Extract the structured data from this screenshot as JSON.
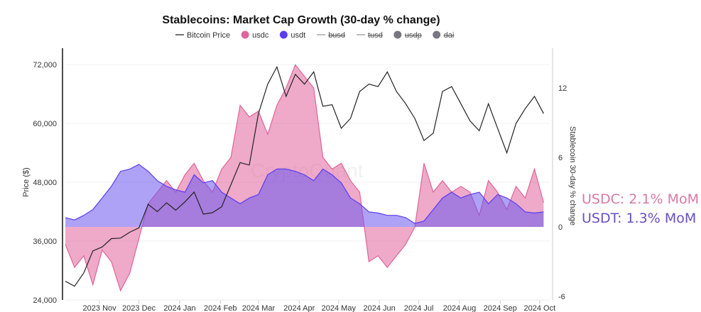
{
  "chart_data": {
    "type": "line+area",
    "title": "Stablecoins: Market Cap Growth (30-day % change)",
    "ylabel_left": "Price ($)",
    "ylabel_right": "Stablecoin 30-day % change",
    "ylim_left": [
      24000,
      78000
    ],
    "ylim_right": [
      -6,
      15
    ],
    "left_ticks": [
      "24,000",
      "36,000",
      "48,000",
      "60,000",
      "72,000"
    ],
    "left_tick_values": [
      24000,
      36000,
      48000,
      60000,
      72000
    ],
    "right_ticks": [
      "-6",
      "0",
      "6",
      "12"
    ],
    "right_tick_values": [
      -6,
      0,
      6,
      12
    ],
    "x_ticks": [
      "2023 Nov",
      "2023 Dec",
      "2024 Jan",
      "2024 Feb",
      "2024 Mar",
      "2024 Apr",
      "2024 May",
      "2024 Jun",
      "2024 Jul",
      "2024 Aug",
      "2024 Sep",
      "2024 Oct"
    ],
    "x_tick_dates": [
      "2023-11-01",
      "2023-12-01",
      "2024-01-01",
      "2024-02-01",
      "2024-03-01",
      "2024-04-01",
      "2024-05-01",
      "2024-06-01",
      "2024-07-01",
      "2024-08-01",
      "2024-09-01",
      "2024-10-01"
    ],
    "grid": true,
    "legend_position": "top",
    "legend": [
      {
        "label": "Bitcoin Price",
        "marker": "line",
        "color": "#222222",
        "hidden": false
      },
      {
        "label": "usdc",
        "marker": "dot",
        "color": "#e0649b",
        "hidden": false
      },
      {
        "label": "usdt",
        "marker": "dot",
        "color": "#5a3df0",
        "hidden": false
      },
      {
        "label": "busd",
        "marker": "line",
        "color": "#999999",
        "hidden": true
      },
      {
        "label": "tusd",
        "marker": "line",
        "color": "#999999",
        "hidden": true
      },
      {
        "label": "usdp",
        "marker": "dot",
        "color": "#777783",
        "hidden": true
      },
      {
        "label": "dai",
        "marker": "dot",
        "color": "#777783",
        "hidden": true
      }
    ],
    "x": [
      "2023-10-06",
      "2023-10-13",
      "2023-10-20",
      "2023-10-27",
      "2023-11-03",
      "2023-11-10",
      "2023-11-17",
      "2023-11-24",
      "2023-12-01",
      "2023-12-08",
      "2023-12-15",
      "2023-12-22",
      "2023-12-29",
      "2024-01-05",
      "2024-01-12",
      "2024-01-19",
      "2024-01-26",
      "2024-02-02",
      "2024-02-09",
      "2024-02-16",
      "2024-02-23",
      "2024-03-01",
      "2024-03-08",
      "2024-03-15",
      "2024-03-22",
      "2024-03-29",
      "2024-04-05",
      "2024-04-12",
      "2024-04-19",
      "2024-04-26",
      "2024-05-03",
      "2024-05-10",
      "2024-05-17",
      "2024-05-24",
      "2024-05-31",
      "2024-06-07",
      "2024-06-14",
      "2024-06-21",
      "2024-06-28",
      "2024-07-05",
      "2024-07-12",
      "2024-07-19",
      "2024-07-26",
      "2024-08-02",
      "2024-08-09",
      "2024-08-16",
      "2024-08-23",
      "2024-08-30",
      "2024-09-06",
      "2024-09-13",
      "2024-09-20",
      "2024-09-27",
      "2024-10-04"
    ],
    "series": [
      {
        "name": "Bitcoin Price",
        "axis": "left",
        "type": "line",
        "color": "#222222",
        "values": [
          27800,
          26800,
          29500,
          34000,
          34800,
          36500,
          36600,
          37800,
          38700,
          43500,
          42000,
          43800,
          42300,
          44000,
          46000,
          41500,
          41800,
          43000,
          47500,
          52000,
          51500,
          62000,
          68000,
          71500,
          65500,
          70000,
          68000,
          70500,
          63500,
          63800,
          59000,
          61000,
          66500,
          68000,
          67500,
          70500,
          66500,
          64000,
          61000,
          56500,
          58000,
          66500,
          67500,
          64000,
          60500,
          58500,
          64000,
          59000,
          54000,
          60000,
          63000,
          65500,
          62000
        ]
      },
      {
        "name": "usdc",
        "axis": "right",
        "type": "area",
        "color": "#e0649b",
        "values": [
          -1.5,
          -3.5,
          -2.5,
          -5,
          -2,
          -3,
          -5.5,
          -4,
          -1,
          2,
          3,
          4,
          3,
          4.5,
          5.5,
          4,
          3,
          5,
          6,
          10.5,
          9.5,
          10,
          8,
          10.5,
          12,
          14,
          13,
          12,
          6,
          5,
          5.5,
          4,
          3,
          -3,
          -2.5,
          -3.5,
          -2.5,
          -1.5,
          0,
          5.5,
          3,
          4,
          3,
          3.5,
          3,
          1,
          4,
          3,
          1.5,
          3.5,
          2.5,
          5,
          2.1
        ]
      },
      {
        "name": "usdt",
        "axis": "right",
        "type": "area",
        "color": "#5a3df0",
        "values": [
          0.8,
          0.6,
          1.0,
          1.5,
          2.5,
          3.5,
          4.8,
          5.0,
          5.4,
          4.8,
          4.0,
          3.5,
          3.2,
          3.0,
          4.5,
          3.8,
          4.0,
          3.0,
          2.5,
          2.0,
          2.5,
          2.8,
          4.5,
          5.0,
          5.0,
          4.8,
          4.5,
          4.0,
          5.0,
          4.5,
          3.8,
          2.5,
          2.0,
          1.3,
          1.2,
          1.0,
          1.0,
          0.8,
          0.3,
          0.5,
          1.5,
          2.5,
          3.0,
          2.5,
          2.8,
          3.0,
          2.0,
          2.8,
          2.5,
          2.0,
          1.3,
          1.2,
          1.3
        ]
      }
    ],
    "annotations": [
      {
        "text": "USDC: 2.1% MoM",
        "color": "#d67aa6"
      },
      {
        "text": "USDT: 1.3% MoM",
        "color": "#6a4fc0"
      }
    ],
    "watermark": "CryptoQuant"
  }
}
